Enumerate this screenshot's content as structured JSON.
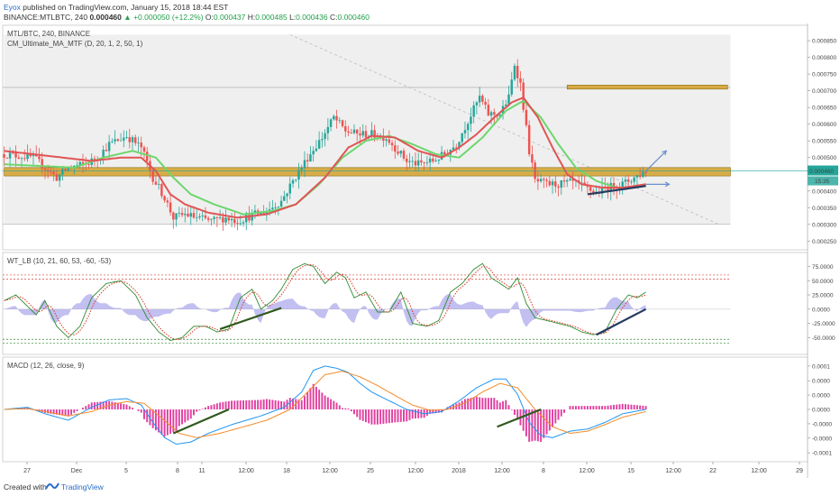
{
  "header": {
    "author": "Eyox",
    "published_text": "published on TradingView.com, January 15, 2018 18:44 EST",
    "symbol_line": "BINANCE:MTLBTC, 240",
    "last": "0.000460",
    "change": "▲ +0.000050 (+12.2%)",
    "o_label": "O:",
    "o_value": "0.000437",
    "h_label": "H:",
    "h_value": "0.000485",
    "l_label": "L:",
    "l_value": "0.000436",
    "c_label": "C:",
    "c_value": "0.000460"
  },
  "footer": {
    "created_with": "Created with",
    "brand": "TradingView"
  },
  "colors": {
    "bull": "#26a69a",
    "bear": "#ef5350",
    "ma_red": "#e05555",
    "ma_green": "#6ed66e",
    "zone": "#d4a02a",
    "trend": "#243a5e",
    "trend_green": "#2f5a1e",
    "wt_green": "#2e8b2e",
    "wt_red": "#d9453a",
    "wt_fill": "#9a94e8",
    "macd": "#2196f3",
    "signal": "#f28c28",
    "hist": "#e040a0",
    "last_price": "#26a69a"
  },
  "chart_data": [
    {
      "type": "candlestick",
      "title": "MTL/BTC, 240, BINANCE",
      "subtitle": "CM_Ultimate_MA_MTF (D, 20, 1, 2, 50, 1)",
      "ylim": [
        0.00024,
        0.00088
      ],
      "y_ticks": [
        "0.000850",
        "0.000800",
        "0.000750",
        "0.000700",
        "0.000650",
        "0.000600",
        "0.000550",
        "0.000500",
        "0.000450",
        "0.000400",
        "0.000350",
        "0.000300",
        "0.000250"
      ],
      "x_ticks": [
        "27",
        "Dec",
        "5",
        "8",
        "11",
        "12:00",
        "18",
        "12:00",
        "25",
        "12:00",
        "2018",
        "12:00",
        "8",
        "12:00",
        "15",
        "12:00",
        "22",
        "12:00",
        "29"
      ],
      "last_price_label": "0.000460",
      "countdown_label": "15:35",
      "anchors": [
        [
          0,
          0.00051
        ],
        [
          5,
          0.000505
        ],
        [
          10,
          0.0005
        ],
        [
          14,
          0.00047
        ],
        [
          18,
          0.00044
        ],
        [
          22,
          0.00047
        ],
        [
          28,
          0.00048
        ],
        [
          32,
          0.0005
        ],
        [
          36,
          0.00054
        ],
        [
          42,
          0.000565
        ],
        [
          47,
          0.00053
        ],
        [
          51,
          0.00044
        ],
        [
          55,
          0.00038
        ],
        [
          58,
          0.00032
        ],
        [
          62,
          0.00033
        ],
        [
          66,
          0.00032
        ],
        [
          71,
          0.00031
        ],
        [
          76,
          0.00032
        ],
        [
          80,
          0.00031
        ],
        [
          86,
          0.00033
        ],
        [
          90,
          0.00034
        ],
        [
          95,
          0.00037
        ],
        [
          99,
          0.00043
        ],
        [
          104,
          0.0005
        ],
        [
          109,
          0.00056
        ],
        [
          113,
          0.00062
        ],
        [
          117,
          0.00058
        ],
        [
          121,
          0.00057
        ],
        [
          126,
          0.00057
        ],
        [
          131,
          0.00056
        ],
        [
          134,
          0.00053
        ],
        [
          138,
          0.00049
        ],
        [
          142,
          0.00048
        ],
        [
          147,
          0.00049
        ],
        [
          151,
          0.00051
        ],
        [
          155,
          0.00054
        ],
        [
          159,
          0.00061
        ],
        [
          163,
          0.00068
        ],
        [
          166,
          0.00063
        ],
        [
          170,
          0.00063
        ],
        [
          173,
          0.00068
        ],
        [
          175,
          0.00078
        ],
        [
          177,
          0.00072
        ],
        [
          180,
          0.00052
        ],
        [
          182,
          0.00043
        ],
        [
          186,
          0.00042
        ],
        [
          190,
          0.00042
        ],
        [
          195,
          0.000425
        ],
        [
          199,
          0.00041
        ],
        [
          203,
          0.000395
        ],
        [
          207,
          0.00041
        ],
        [
          212,
          0.00042
        ],
        [
          216,
          0.00044
        ],
        [
          220,
          0.00046
        ]
      ],
      "ma_red": [
        [
          0,
          0.00052
        ],
        [
          20,
          0.0005
        ],
        [
          30,
          0.00049
        ],
        [
          40,
          0.0005
        ],
        [
          47,
          0.0005
        ],
        [
          52,
          0.00046
        ],
        [
          57,
          0.00039
        ],
        [
          62,
          0.00036
        ],
        [
          70,
          0.000335
        ],
        [
          80,
          0.00032
        ],
        [
          90,
          0.00033
        ],
        [
          100,
          0.00036
        ],
        [
          110,
          0.00044
        ],
        [
          118,
          0.00053
        ],
        [
          126,
          0.000565
        ],
        [
          134,
          0.00056
        ],
        [
          142,
          0.00052
        ],
        [
          150,
          0.0005
        ],
        [
          156,
          0.00053
        ],
        [
          162,
          0.00057
        ],
        [
          168,
          0.00062
        ],
        [
          174,
          0.000665
        ],
        [
          178,
          0.00068
        ],
        [
          183,
          0.00062
        ],
        [
          188,
          0.00053
        ],
        [
          193,
          0.00045
        ],
        [
          198,
          0.00042
        ],
        [
          205,
          0.00041
        ],
        [
          212,
          0.00041
        ],
        [
          220,
          0.00042
        ]
      ],
      "ma_green": [
        [
          0,
          0.00048
        ],
        [
          12,
          0.000475
        ],
        [
          24,
          0.00047
        ],
        [
          34,
          0.0005
        ],
        [
          44,
          0.00052
        ],
        [
          52,
          0.0005
        ],
        [
          58,
          0.00044
        ],
        [
          64,
          0.00039
        ],
        [
          72,
          0.00036
        ],
        [
          82,
          0.00033
        ],
        [
          92,
          0.00034
        ],
        [
          100,
          0.00036
        ],
        [
          108,
          0.00042
        ],
        [
          116,
          0.0005
        ],
        [
          124,
          0.00055
        ],
        [
          132,
          0.000565
        ],
        [
          140,
          0.00054
        ],
        [
          148,
          0.00051
        ],
        [
          156,
          0.0005
        ],
        [
          164,
          0.00056
        ],
        [
          172,
          0.00064
        ],
        [
          178,
          0.00067
        ],
        [
          184,
          0.00062
        ],
        [
          190,
          0.00054
        ],
        [
          196,
          0.00047
        ],
        [
          203,
          0.00043
        ],
        [
          210,
          0.00041
        ],
        [
          216,
          0.00041
        ],
        [
          220,
          0.00042
        ]
      ],
      "zones": [
        {
          "x0": 0,
          "x1": 249,
          "y_low": 0.000445,
          "y_high": 0.00047
        },
        {
          "x0": 193,
          "x1": 248,
          "y_low": 0.000705,
          "y_high": 0.000717
        }
      ],
      "upper_line": 0.00071,
      "lower_line": 0.0003,
      "grey_box": {
        "x0": 0,
        "x1": 249,
        "y_low": 0.0003,
        "y_high": 0.000868
      },
      "down_trend": [
        [
          98,
          0.000868
        ],
        [
          245,
          0.0003
        ]
      ],
      "support_trend": [
        [
          200,
          0.00039
        ],
        [
          220,
          0.000415
        ]
      ],
      "arrows": [
        [
          [
            220,
            0.00046
          ],
          [
            227,
            0.00052
          ]
        ],
        [
          [
            220,
            0.00042
          ],
          [
            228,
            0.00042
          ]
        ]
      ]
    },
    {
      "type": "line",
      "title": "WT_LB (10, 21, 60, 53, -60, -53)",
      "ylim": [
        -70,
        90
      ],
      "y_ticks": [
        "75.0000",
        "50.0000",
        "25.0000",
        "0.0000",
        "-25.0000",
        "-50.0000"
      ],
      "levels": [
        60,
        53,
        -53,
        -60
      ],
      "anchors": [
        [
          0,
          15
        ],
        [
          4,
          25
        ],
        [
          8,
          5
        ],
        [
          11,
          -10
        ],
        [
          14,
          15
        ],
        [
          18,
          -30
        ],
        [
          22,
          -50
        ],
        [
          26,
          -30
        ],
        [
          30,
          20
        ],
        [
          35,
          45
        ],
        [
          40,
          50
        ],
        [
          45,
          25
        ],
        [
          49,
          -15
        ],
        [
          53,
          -40
        ],
        [
          57,
          -55
        ],
        [
          61,
          -50
        ],
        [
          65,
          -30
        ],
        [
          69,
          -30
        ],
        [
          73,
          -40
        ],
        [
          77,
          -35
        ],
        [
          81,
          20
        ],
        [
          85,
          35
        ],
        [
          88,
          0
        ],
        [
          92,
          15
        ],
        [
          95,
          35
        ],
        [
          99,
          70
        ],
        [
          103,
          80
        ],
        [
          106,
          75
        ],
        [
          110,
          45
        ],
        [
          114,
          65
        ],
        [
          117,
          55
        ],
        [
          120,
          20
        ],
        [
          124,
          30
        ],
        [
          128,
          -5
        ],
        [
          132,
          -5
        ],
        [
          136,
          30
        ],
        [
          140,
          -25
        ],
        [
          145,
          -30
        ],
        [
          149,
          -20
        ],
        [
          153,
          30
        ],
        [
          157,
          45
        ],
        [
          161,
          70
        ],
        [
          164,
          80
        ],
        [
          167,
          55
        ],
        [
          170,
          45
        ],
        [
          173,
          35
        ],
        [
          176,
          55
        ],
        [
          179,
          10
        ],
        [
          182,
          -15
        ],
        [
          186,
          -20
        ],
        [
          190,
          -25
        ],
        [
          194,
          -30
        ],
        [
          198,
          -40
        ],
        [
          202,
          -45
        ],
        [
          206,
          -40
        ],
        [
          210,
          0
        ],
        [
          214,
          25
        ],
        [
          217,
          20
        ],
        [
          220,
          30
        ]
      ],
      "trend_lines": [
        [
          [
            74,
            -35
          ],
          [
            95,
            2
          ]
        ],
        [
          [
            203,
            -45
          ],
          [
            220,
            0
          ]
        ]
      ]
    },
    {
      "type": "line",
      "title": "MACD (12, 26, close, 9)",
      "ylim": [
        -0.000108,
        0.000108
      ],
      "y_ticks": [
        "0.0001",
        "0.0000",
        "0.0000",
        "0.0000",
        "-0.0000",
        "-0.0000",
        "-0.0001"
      ],
      "macd_anchors": [
        [
          0,
          0
        ],
        [
          8,
          5
        ],
        [
          14,
          -10
        ],
        [
          22,
          -25
        ],
        [
          30,
          5
        ],
        [
          36,
          22
        ],
        [
          42,
          25
        ],
        [
          47,
          10
        ],
        [
          51,
          -30
        ],
        [
          55,
          -65
        ],
        [
          59,
          -80
        ],
        [
          64,
          -75
        ],
        [
          70,
          -55
        ],
        [
          78,
          -35
        ],
        [
          88,
          -15
        ],
        [
          96,
          5
        ],
        [
          102,
          40
        ],
        [
          106,
          90
        ],
        [
          110,
          100
        ],
        [
          114,
          95
        ],
        [
          118,
          85
        ],
        [
          122,
          60
        ],
        [
          126,
          40
        ],
        [
          132,
          20
        ],
        [
          138,
          0
        ],
        [
          144,
          -10
        ],
        [
          150,
          -5
        ],
        [
          156,
          20
        ],
        [
          162,
          50
        ],
        [
          168,
          70
        ],
        [
          172,
          70
        ],
        [
          176,
          35
        ],
        [
          180,
          -30
        ],
        [
          184,
          -60
        ],
        [
          188,
          -65
        ],
        [
          194,
          -50
        ],
        [
          200,
          -45
        ],
        [
          206,
          -30
        ],
        [
          212,
          -10
        ],
        [
          220,
          0
        ]
      ],
      "signal_anchors": [
        [
          0,
          0
        ],
        [
          8,
          2
        ],
        [
          14,
          -5
        ],
        [
          22,
          -15
        ],
        [
          30,
          -5
        ],
        [
          36,
          10
        ],
        [
          42,
          18
        ],
        [
          48,
          14
        ],
        [
          54,
          -20
        ],
        [
          60,
          -55
        ],
        [
          66,
          -65
        ],
        [
          74,
          -55
        ],
        [
          82,
          -40
        ],
        [
          90,
          -25
        ],
        [
          98,
          0
        ],
        [
          104,
          40
        ],
        [
          110,
          80
        ],
        [
          116,
          88
        ],
        [
          122,
          75
        ],
        [
          128,
          55
        ],
        [
          134,
          32
        ],
        [
          140,
          10
        ],
        [
          146,
          -2
        ],
        [
          152,
          0
        ],
        [
          158,
          15
        ],
        [
          164,
          40
        ],
        [
          170,
          60
        ],
        [
          176,
          50
        ],
        [
          182,
          0
        ],
        [
          188,
          -40
        ],
        [
          194,
          -55
        ],
        [
          200,
          -50
        ],
        [
          206,
          -35
        ],
        [
          212,
          -18
        ],
        [
          220,
          -5
        ]
      ],
      "trend_lines": [
        [
          [
            58,
            -55
          ],
          [
            77,
            0
          ]
        ],
        [
          [
            169,
            -40
          ],
          [
            184,
            0
          ]
        ]
      ]
    }
  ]
}
